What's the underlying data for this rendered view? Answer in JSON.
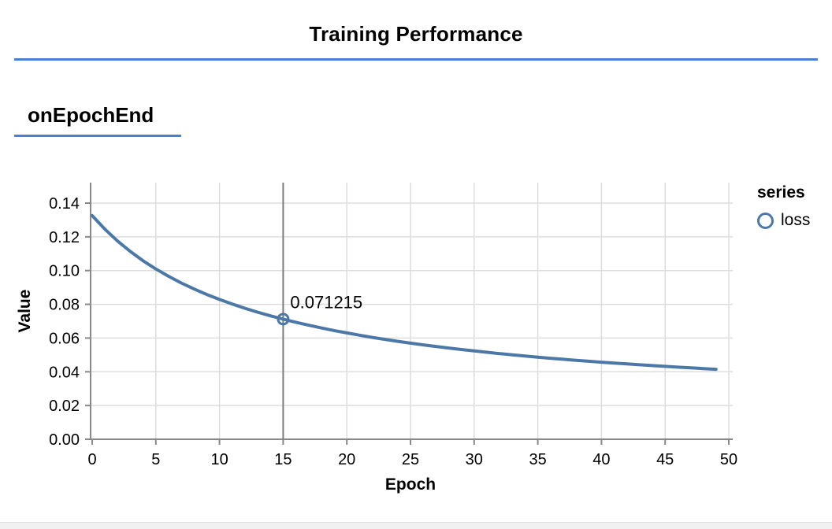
{
  "page": {
    "title": "Training Performance",
    "section_heading": "onEpochEnd"
  },
  "colors": {
    "accent_rule": "#4a7dd6",
    "series_line": "#4c78a8",
    "grid": "#dddddd",
    "axis": "#888888",
    "ruler": "#7d7d7d",
    "text": "#000000",
    "bottom_bar": "#f1f1f2"
  },
  "legend": {
    "title": "series",
    "items": [
      {
        "label": "loss",
        "marker": "open-circle",
        "color": "#4c78a8"
      }
    ]
  },
  "chart_data": {
    "type": "line",
    "title": "",
    "xlabel": "Epoch",
    "ylabel": "Value",
    "grid": true,
    "legend_position": "right",
    "xlim": [
      0,
      50.3
    ],
    "ylim": [
      0,
      0.152
    ],
    "x_ticks": [
      0,
      5,
      10,
      15,
      20,
      25,
      30,
      35,
      40,
      45,
      50
    ],
    "y_ticks": [
      "0.00",
      "0.02",
      "0.04",
      "0.06",
      "0.08",
      "0.10",
      "0.12",
      "0.14"
    ],
    "y_tick_values": [
      0,
      0.02,
      0.04,
      0.06,
      0.08,
      0.1,
      0.12,
      0.14
    ],
    "series": [
      {
        "name": "loss",
        "x": [
          0,
          1,
          2,
          3,
          4,
          5,
          6,
          7,
          8,
          9,
          10,
          11,
          12,
          13,
          14,
          15,
          16,
          17,
          18,
          19,
          20,
          21,
          22,
          23,
          24,
          25,
          26,
          27,
          28,
          29,
          30,
          31,
          32,
          33,
          34,
          35,
          36,
          37,
          38,
          39,
          40,
          41,
          42,
          43,
          44,
          45,
          46,
          47,
          48,
          49
        ],
        "values": [
          0.1326,
          0.1245,
          0.11745,
          0.11128,
          0.10581,
          0.10094,
          0.09658,
          0.09265,
          0.08909,
          0.08584,
          0.08288,
          0.08016,
          0.07765,
          0.07534,
          0.07319,
          0.071215,
          0.06934,
          0.06761,
          0.06599,
          0.06446,
          0.06303,
          0.06168,
          0.06041,
          0.05921,
          0.05807,
          0.05699,
          0.05597,
          0.055,
          0.05407,
          0.05319,
          0.05235,
          0.05155,
          0.05078,
          0.05005,
          0.04934,
          0.04867,
          0.04802,
          0.0474,
          0.04681,
          0.04623,
          0.04568,
          0.04515,
          0.04464,
          0.04414,
          0.04366,
          0.0432,
          0.04276,
          0.04233,
          0.04191,
          0.04151
        ]
      }
    ],
    "highlighted_point": {
      "x": 15,
      "y": 0.071215,
      "label": "0.071215"
    }
  }
}
